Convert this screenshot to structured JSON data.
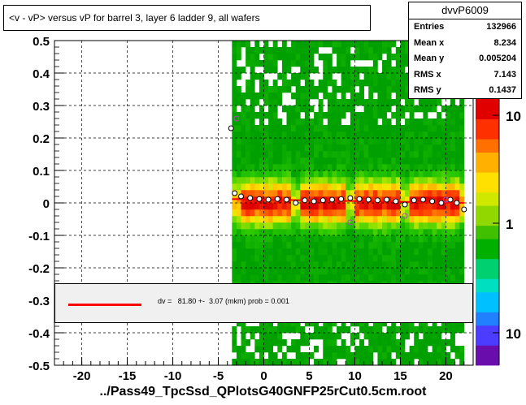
{
  "title": "<v - vP>       versus   vP for barrel 3, layer 6 ladder 9, all wafers",
  "bottom_label": "../Pass49_TpcSsd_QPlotsG40GNFP25rCut0.5cm.root",
  "stats": {
    "name": "dvvP6009",
    "rows": [
      {
        "label": "Entries",
        "value": "132966"
      },
      {
        "label": "Mean x",
        "value": "8.234"
      },
      {
        "label": "Mean y",
        "value": "0.005204"
      },
      {
        "label": "RMS x",
        "value": "7.143"
      },
      {
        "label": "RMS y",
        "value": "0.1437"
      }
    ]
  },
  "legend": {
    "text": "dv =   81.80 +-  3.07 (mkm) prob = 0.001",
    "line_color": "#ff0000"
  },
  "chart_data": {
    "type": "heatmap",
    "xlim": [
      -23,
      23
    ],
    "ylim": [
      -0.5,
      0.5
    ],
    "x_ticks": [
      "-20",
      "-15",
      "-10",
      "-5",
      "0",
      "5",
      "10",
      "15",
      "20"
    ],
    "x_tick_values": [
      -20,
      -15,
      -10,
      -5,
      0,
      5,
      10,
      15,
      20
    ],
    "y_ticks": [
      "-0.5",
      "-0.4",
      "-0.3",
      "-0.2",
      "-0.1",
      "0",
      "0.1",
      "0.2",
      "0.3",
      "0.4",
      "0.5"
    ],
    "y_tick_values": [
      -0.5,
      -0.4,
      -0.3,
      -0.2,
      -0.1,
      0,
      0.1,
      0.2,
      0.3,
      0.4,
      0.5
    ],
    "colorbar_labels": [
      "10",
      "1",
      "10"
    ],
    "data_x_range": [
      -3.5,
      22
    ],
    "wafer_gaps": [
      3.4,
      9.4,
      15.4
    ],
    "profile_points": [
      {
        "x": -3.6,
        "y": 0.23
      },
      {
        "x": -3.2,
        "y": 0.03
      },
      {
        "x": -2.5,
        "y": 0.02
      },
      {
        "x": -1.5,
        "y": 0.015
      },
      {
        "x": -0.5,
        "y": 0.012
      },
      {
        "x": 0.5,
        "y": 0.01
      },
      {
        "x": 1.5,
        "y": 0.012
      },
      {
        "x": 2.5,
        "y": 0.01
      },
      {
        "x": 3.5,
        "y": 0.0
      },
      {
        "x": 4.5,
        "y": 0.008
      },
      {
        "x": 5.5,
        "y": 0.005
      },
      {
        "x": 6.5,
        "y": 0.008
      },
      {
        "x": 7.5,
        "y": 0.01
      },
      {
        "x": 8.5,
        "y": 0.012
      },
      {
        "x": 9.5,
        "y": 0.015
      },
      {
        "x": 10.5,
        "y": 0.012
      },
      {
        "x": 11.5,
        "y": 0.01
      },
      {
        "x": 12.5,
        "y": 0.008
      },
      {
        "x": 13.5,
        "y": 0.01
      },
      {
        "x": 14.5,
        "y": 0.005
      },
      {
        "x": 15.5,
        "y": -0.005
      },
      {
        "x": 16.5,
        "y": 0.008
      },
      {
        "x": 17.5,
        "y": 0.01
      },
      {
        "x": 18.5,
        "y": 0.005
      },
      {
        "x": 19.5,
        "y": 0.0
      },
      {
        "x": 20.5,
        "y": 0.01
      },
      {
        "x": 21.2,
        "y": 0.0
      },
      {
        "x": 22.0,
        "y": -0.02
      }
    ],
    "outlier_points": [
      {
        "x": -3.0,
        "y": 0.26
      },
      {
        "x": 9.5,
        "y": -0.06
      },
      {
        "x": 15.5,
        "y": -0.04
      },
      {
        "x": 20.0,
        "y": 0.01
      }
    ],
    "fit_line": {
      "x0": -3.5,
      "x1": 22.0,
      "y0": 0.012,
      "y1": 0.0,
      "color": "#ff0000"
    }
  }
}
